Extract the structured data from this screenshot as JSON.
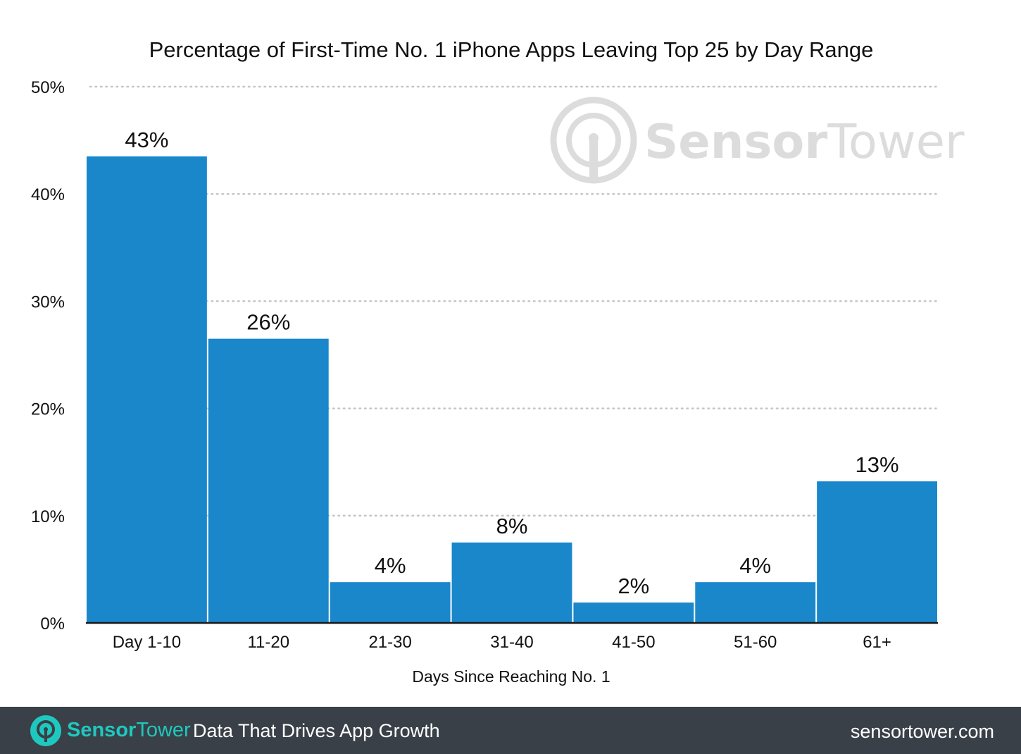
{
  "chart_data": {
    "type": "bar",
    "title": "Percentage of First-Time No. 1 iPhone Apps Leaving Top 25 by Day Range",
    "xlabel": "Days Since Reaching No. 1",
    "ylabel": "",
    "categories": [
      "Day 1-10",
      "11-20",
      "21-30",
      "31-40",
      "41-50",
      "51-60",
      "61+"
    ],
    "values": [
      43.5,
      26.5,
      3.8,
      7.5,
      1.9,
      3.8,
      13.2
    ],
    "data_labels": [
      "43%",
      "26%",
      "4%",
      "8%",
      "2%",
      "4%",
      "13%"
    ],
    "ylim": [
      0,
      50
    ],
    "yticks": [
      0,
      10,
      20,
      30,
      40,
      50
    ],
    "ytick_labels": [
      "0%",
      "10%",
      "20%",
      "30%",
      "40%",
      "50%"
    ],
    "grid": "horizontal dotted",
    "legend": "none",
    "bar_color": "#1a87cb"
  },
  "watermark": {
    "text_bold": "Sensor",
    "text_light": "Tower"
  },
  "footer": {
    "brand_bold": "Sensor",
    "brand_light": "Tower",
    "tagline": "Data That Drives App Growth",
    "website": "sensortower.com",
    "background_color": "#394048",
    "brand_color": "#1fc8bf",
    "logo_icon": "sensortower-logo-icon"
  }
}
